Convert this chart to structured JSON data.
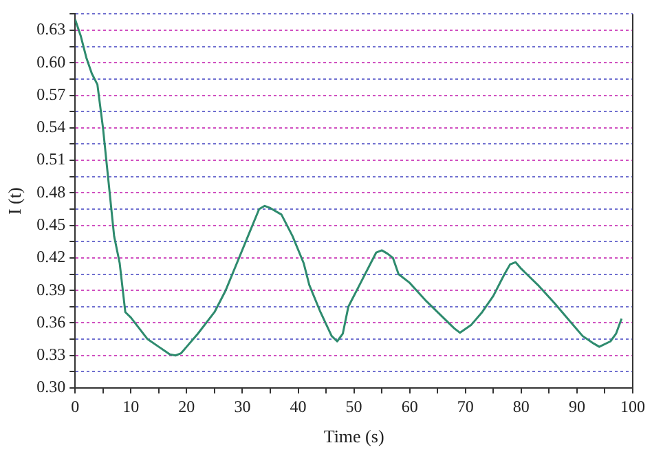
{
  "chart_data": {
    "type": "line",
    "xlabel": "Time (s)",
    "ylabel": "I (t)",
    "x": [
      0,
      1,
      2,
      3,
      4,
      5,
      6,
      7,
      8,
      9,
      10,
      13,
      15,
      17,
      18,
      19,
      20,
      22,
      25,
      27,
      29,
      31,
      33,
      34,
      35,
      37,
      39,
      41,
      42,
      44,
      46,
      47,
      48,
      49,
      51,
      53,
      54,
      55,
      56,
      57,
      58,
      60,
      63,
      66,
      68,
      69,
      71,
      73,
      75,
      77,
      78,
      79,
      80,
      83,
      86,
      89,
      91,
      93,
      94,
      96,
      97,
      98
    ],
    "series": [
      {
        "color": "#2e8b6e",
        "values": [
          0.64,
          0.625,
          0.605,
          0.59,
          0.58,
          0.54,
          0.49,
          0.44,
          0.415,
          0.37,
          0.365,
          0.345,
          0.338,
          0.331,
          0.33,
          0.332,
          0.338,
          0.35,
          0.37,
          0.39,
          0.415,
          0.44,
          0.465,
          0.468,
          0.466,
          0.46,
          0.44,
          0.415,
          0.395,
          0.37,
          0.348,
          0.343,
          0.35,
          0.375,
          0.395,
          0.415,
          0.425,
          0.427,
          0.424,
          0.42,
          0.405,
          0.397,
          0.38,
          0.365,
          0.355,
          0.351,
          0.358,
          0.37,
          0.385,
          0.405,
          0.414,
          0.416,
          0.41,
          0.395,
          0.378,
          0.36,
          0.348,
          0.341,
          0.338,
          0.343,
          0.35,
          0.364
        ]
      }
    ],
    "xlim": [
      0,
      100
    ],
    "xticks": [
      0,
      {
        "value": 5,
        "label": null
      },
      10,
      {
        "value": 15,
        "label": null
      },
      20,
      {
        "value": 25,
        "label": null
      },
      30,
      {
        "value": 35,
        "label": null
      },
      40,
      {
        "value": 45,
        "label": null
      },
      50,
      {
        "value": 55,
        "label": null
      },
      60,
      {
        "value": 65,
        "label": null
      },
      70,
      {
        "value": 75,
        "label": null
      },
      80,
      {
        "value": 85,
        "label": null
      },
      90,
      {
        "value": 95,
        "label": null
      },
      100
    ],
    "ylim": [
      0.3,
      0.645
    ],
    "yticks": [
      {
        "value": 0.3,
        "label": "0.30"
      },
      {
        "value": 0.315,
        "label": null
      },
      0.33,
      {
        "value": 0.345,
        "label": null
      },
      0.36,
      {
        "value": 0.375,
        "label": null
      },
      0.39,
      {
        "value": 0.405,
        "label": null
      },
      0.42,
      {
        "value": 0.435,
        "label": null
      },
      0.45,
      {
        "value": 0.465,
        "label": null
      },
      0.48,
      {
        "value": 0.495,
        "label": null
      },
      0.51,
      {
        "value": 0.525,
        "label": null
      },
      0.54,
      {
        "value": 0.555,
        "label": null
      },
      0.57,
      {
        "value": 0.585,
        "label": null
      },
      {
        "value": 0.6,
        "label": "0.60"
      },
      {
        "value": 0.615,
        "label": null
      },
      0.63,
      {
        "value": 0.645,
        "label": null
      }
    ],
    "grid": "y",
    "marker": "none",
    "line_style": "solid"
  }
}
